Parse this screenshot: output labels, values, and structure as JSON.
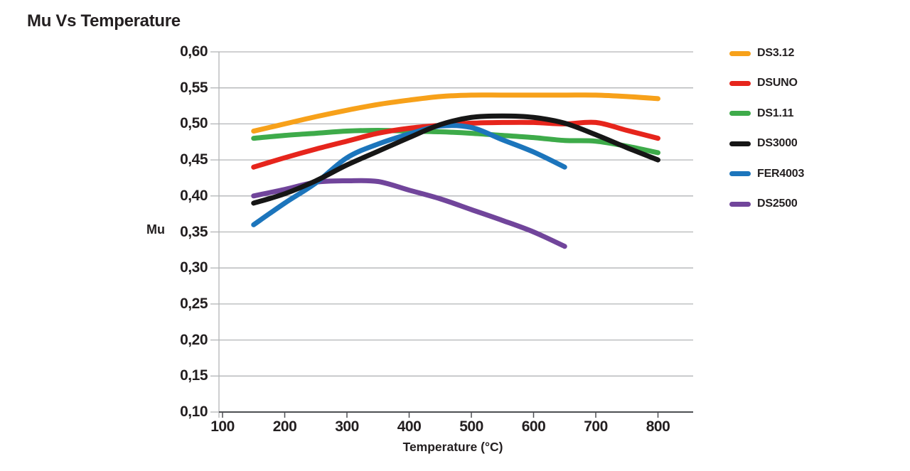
{
  "page": {
    "background": "#ffffff"
  },
  "colors": {
    "title_text": "#231f20",
    "axis_text": "#231f20",
    "gridline": "#b3b5b7",
    "axis_line": "#4d4f53"
  },
  "chart_data": {
    "type": "line",
    "title": "Mu Vs Temperature",
    "xlabel": "Temperature (°C)",
    "ylabel": "Mu",
    "xlim": [
      100,
      850
    ],
    "ylim": [
      0.1,
      0.6
    ],
    "grid": "horizontal",
    "legend_position": "right",
    "x_ticks": [
      100,
      200,
      300,
      400,
      500,
      600,
      700,
      800
    ],
    "x_tick_labels": [
      "100",
      "200",
      "300",
      "400",
      "500",
      "600",
      "700",
      "800"
    ],
    "y_ticks": [
      0.6,
      0.55,
      0.5,
      0.45,
      0.4,
      0.35,
      0.3,
      0.25,
      0.2,
      0.15,
      0.1
    ],
    "y_tick_labels": [
      "0,60",
      "0,55",
      "0,50",
      "0,45",
      "0,40",
      "0,35",
      "0,30",
      "0,25",
      "0,20",
      "0,15",
      "0,10"
    ],
    "decimal_separator": ",",
    "x": [
      150,
      200,
      250,
      300,
      350,
      400,
      450,
      500,
      550,
      600,
      650,
      700,
      750,
      800
    ],
    "series": [
      {
        "name": "DS3.12",
        "color": "#F7A11A",
        "values": [
          0.49,
          0.5,
          0.51,
          0.519,
          0.527,
          0.533,
          0.538,
          0.54,
          0.54,
          0.54,
          0.54,
          0.54,
          0.538,
          0.535
        ]
      },
      {
        "name": "DSUNO",
        "color": "#E6251C",
        "values": [
          0.44,
          0.453,
          0.465,
          0.476,
          0.487,
          0.494,
          0.498,
          0.501,
          0.502,
          0.502,
          0.5,
          0.502,
          0.491,
          0.48
        ]
      },
      {
        "name": "DS1.11",
        "color": "#3EAB4A",
        "values": [
          0.48,
          0.484,
          0.487,
          0.49,
          0.491,
          0.49,
          0.489,
          0.487,
          0.484,
          0.481,
          0.477,
          0.476,
          0.469,
          0.46
        ]
      },
      {
        "name": "DS3000",
        "color": "#161616",
        "values": [
          0.39,
          0.403,
          0.421,
          0.443,
          0.462,
          0.481,
          0.499,
          0.509,
          0.511,
          0.509,
          0.501,
          0.485,
          0.467,
          0.45
        ]
      },
      {
        "name": "FER4003",
        "color": "#1C75BC",
        "values": [
          0.36,
          0.39,
          0.418,
          0.453,
          0.472,
          0.486,
          0.497,
          0.495,
          0.478,
          0.461,
          0.44,
          null,
          null,
          null
        ]
      },
      {
        "name": "DS2500",
        "color": "#71459B",
        "values": [
          0.4,
          0.409,
          0.419,
          0.421,
          0.42,
          0.408,
          0.396,
          0.381,
          0.366,
          0.35,
          0.33,
          null,
          null,
          null
        ]
      }
    ],
    "draw_order": [
      "DS2500",
      "DS1.11",
      "DSUNO",
      "FER4003",
      "DS3000",
      "DS3.12"
    ]
  }
}
